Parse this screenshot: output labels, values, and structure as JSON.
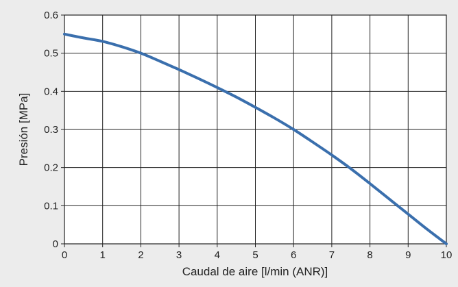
{
  "chart_data": {
    "type": "line",
    "title": "",
    "xlabel": "Caudal de aire [l/min (ANR)]",
    "ylabel": "Presión [MPa]",
    "xlim": [
      0,
      10
    ],
    "ylim": [
      0,
      0.6
    ],
    "x_ticks": [
      "0",
      "1",
      "2",
      "3",
      "4",
      "5",
      "6",
      "7",
      "8",
      "9",
      "10"
    ],
    "y_ticks": [
      "0",
      "0.1",
      "0.2",
      "0.3",
      "0.4",
      "0.5",
      "0.6"
    ],
    "grid": true,
    "legend": "none",
    "series": [
      {
        "color": "#3a6fad",
        "x": [
          0,
          0.5,
          1,
          1.5,
          2,
          2.5,
          3,
          3.5,
          4,
          4.5,
          5,
          5.5,
          6,
          6.5,
          7,
          7.5,
          8,
          8.5,
          9,
          9.5,
          10
        ],
        "y": [
          0.55,
          0.54,
          0.531,
          0.517,
          0.5,
          0.479,
          0.457,
          0.434,
          0.41,
          0.385,
          0.358,
          0.33,
          0.3,
          0.267,
          0.233,
          0.197,
          0.158,
          0.118,
          0.078,
          0.038,
          0.0
        ]
      }
    ]
  }
}
